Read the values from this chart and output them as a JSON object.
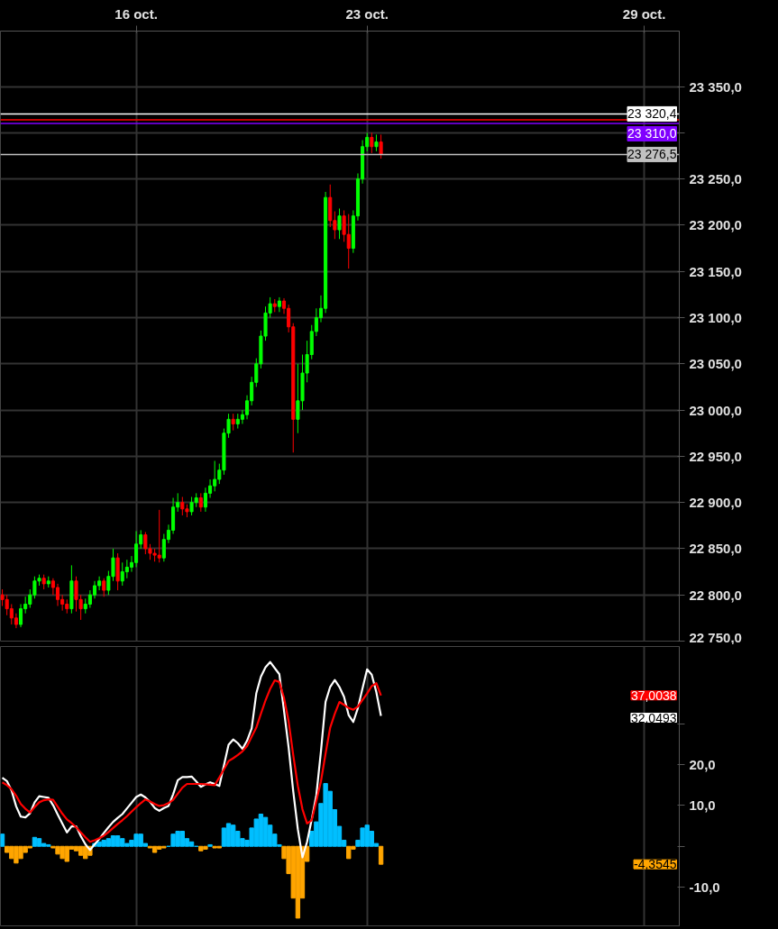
{
  "chart_data": [
    {
      "type": "candlestick",
      "categories": [
        null,
        null,
        null,
        null,
        null,
        null,
        null,
        null,
        null,
        null,
        null,
        null,
        null,
        null,
        null,
        null,
        null,
        null,
        null,
        null,
        null,
        null,
        null,
        null,
        null,
        null,
        null,
        null,
        null,
        "16 oct.",
        null,
        null,
        null,
        null,
        null,
        null,
        null,
        null,
        null,
        null,
        null,
        null,
        null,
        null,
        null,
        null,
        null,
        null,
        null,
        null,
        null,
        null,
        null,
        null,
        null,
        null,
        null,
        null,
        null,
        null,
        null,
        null,
        null,
        null,
        null,
        null,
        null,
        null,
        null,
        null,
        null,
        null,
        null,
        null,
        null,
        null,
        null,
        null,
        null,
        "23 oct.",
        null,
        null,
        null,
        null,
        null,
        null,
        null,
        null,
        null,
        null,
        null,
        null,
        null,
        null,
        null,
        null,
        null,
        null,
        null,
        null,
        null,
        null,
        null,
        null,
        null,
        null,
        null,
        null,
        null,
        null,
        null,
        null,
        null,
        null,
        null,
        null,
        null,
        null,
        null,
        null,
        null,
        null,
        null,
        null,
        null,
        null,
        null,
        null,
        null,
        null,
        null,
        null,
        null,
        null,
        null,
        null,
        null,
        null,
        null,
        "29 oct.",
        null,
        null,
        null,
        null,
        null,
        null,
        null
      ],
      "ohlc": [
        [
          22800,
          22806,
          22788,
          22795
        ],
        [
          22795,
          22800,
          22778,
          22785
        ],
        [
          22785,
          22790,
          22768,
          22775
        ],
        [
          22775,
          22780,
          22764,
          22768
        ],
        [
          22768,
          22790,
          22765,
          22785
        ],
        [
          22785,
          22798,
          22780,
          22790
        ],
        [
          22790,
          22806,
          22786,
          22800
        ],
        [
          22800,
          22820,
          22796,
          22815
        ],
        [
          22815,
          22822,
          22810,
          22818
        ],
        [
          22818,
          22822,
          22806,
          22812
        ],
        [
          22812,
          22820,
          22808,
          22815
        ],
        [
          22815,
          22818,
          22800,
          22808
        ],
        [
          22808,
          22812,
          22788,
          22795
        ],
        [
          22795,
          22800,
          22783,
          22790
        ],
        [
          22790,
          22795,
          22780,
          22785
        ],
        [
          22785,
          22832,
          22780,
          22815
        ],
        [
          22815,
          22820,
          22782,
          22795
        ],
        [
          22795,
          22800,
          22773,
          22785
        ],
        [
          22785,
          22796,
          22780,
          22790
        ],
        [
          22790,
          22805,
          22786,
          22800
        ],
        [
          22800,
          22815,
          22796,
          22810
        ],
        [
          22810,
          22820,
          22805,
          22815
        ],
        [
          22815,
          22818,
          22798,
          22805
        ],
        [
          22805,
          22826,
          22800,
          22820
        ],
        [
          22820,
          22850,
          22815,
          22840
        ],
        [
          22840,
          22845,
          22805,
          22815
        ],
        [
          22815,
          22835,
          22810,
          22825
        ],
        [
          22825,
          22838,
          22818,
          22830
        ],
        [
          22830,
          22842,
          22825,
          22835
        ],
        [
          22835,
          22869,
          22830,
          22855
        ],
        [
          22855,
          22870,
          22850,
          22865
        ],
        [
          22865,
          22868,
          22844,
          22850
        ],
        [
          22850,
          22855,
          22838,
          22845
        ],
        [
          22845,
          22850,
          22836,
          22843
        ],
        [
          22843,
          22892,
          22835,
          22840
        ],
        [
          22840,
          22866,
          22836,
          22860
        ],
        [
          22860,
          22876,
          22856,
          22870
        ],
        [
          22870,
          22905,
          22866,
          22895
        ],
        [
          22895,
          22910,
          22890,
          22900
        ],
        [
          22900,
          22906,
          22886,
          22893
        ],
        [
          22893,
          22898,
          22884,
          22890
        ],
        [
          22890,
          22906,
          22886,
          22900
        ],
        [
          22900,
          22910,
          22895,
          22905
        ],
        [
          22905,
          22910,
          22890,
          22895
        ],
        [
          22895,
          22916,
          22890,
          22910
        ],
        [
          22910,
          22925,
          22905,
          22918
        ],
        [
          22918,
          22945,
          22912,
          22925
        ],
        [
          22925,
          22942,
          22920,
          22935
        ],
        [
          22935,
          22980,
          22930,
          22975
        ],
        [
          22975,
          22996,
          22970,
          22990
        ],
        [
          22990,
          22996,
          22978,
          22985
        ],
        [
          22985,
          22996,
          22980,
          22990
        ],
        [
          22990,
          23000,
          22985,
          22995
        ],
        [
          22995,
          23016,
          22990,
          23010
        ],
        [
          23010,
          23036,
          23005,
          23030
        ],
        [
          23030,
          23056,
          23025,
          23050
        ],
        [
          23050,
          23086,
          23045,
          23080
        ],
        [
          23080,
          23112,
          23075,
          23105
        ],
        [
          23105,
          23122,
          23100,
          23115
        ],
        [
          23115,
          23120,
          23106,
          23112
        ],
        [
          23112,
          23122,
          23106,
          23118
        ],
        [
          23118,
          23121,
          23104,
          23110
        ],
        [
          23110,
          23114,
          23084,
          23090
        ],
        [
          23090,
          23094,
          22954,
          22990
        ],
        [
          22990,
          23050,
          22975,
          23010
        ],
        [
          23010,
          23060,
          23000,
          23040
        ],
        [
          23040,
          23075,
          23030,
          23060
        ],
        [
          23060,
          23092,
          23055,
          23085
        ],
        [
          23085,
          23110,
          23080,
          23100
        ],
        [
          23100,
          23124,
          23095,
          23110
        ],
        [
          23110,
          23236,
          23105,
          23230
        ],
        [
          23230,
          23244,
          23198,
          23205
        ],
        [
          23205,
          23215,
          23185,
          23195
        ],
        [
          23195,
          23218,
          23185,
          23210
        ],
        [
          23210,
          23216,
          23182,
          23190
        ],
        [
          23190,
          23212,
          23153,
          23175
        ],
        [
          23175,
          23216,
          23170,
          23210
        ],
        [
          23210,
          23256,
          23205,
          23250
        ],
        [
          23250,
          23292,
          23245,
          23285
        ],
        [
          23285,
          23300,
          23280,
          23295
        ],
        [
          23295,
          23300,
          23278,
          23285
        ],
        [
          23285,
          23298,
          23280,
          23290
        ],
        [
          23290,
          23298,
          23272,
          23276.5
        ],
        null,
        null,
        null,
        null,
        null,
        null,
        null,
        null,
        null,
        null,
        null,
        null,
        null,
        null,
        null,
        null,
        null,
        null,
        null,
        null,
        null,
        null,
        null,
        null,
        null,
        null,
        null,
        null,
        null,
        null,
        null,
        null,
        null,
        null,
        null,
        null,
        null,
        null,
        null,
        null,
        null,
        null,
        null,
        null,
        null,
        null,
        null,
        null,
        null,
        null,
        null,
        null,
        null,
        null,
        null,
        null,
        null,
        null,
        null,
        null,
        null,
        null,
        null,
        null
      ],
      "colors": [
        "#ff0000",
        "#ff0000",
        "#ff0000",
        "#ff0000",
        "#00ff00",
        "#00ff00",
        "#00ff00",
        "#00ff00",
        "#00ff00",
        "#ff0000",
        "#00ff00",
        "#ff0000",
        "#ff0000",
        "#ff0000",
        "#ff0000",
        "#00ff00",
        "#ff0000",
        "#ff0000",
        "#00ff00",
        "#00ff00",
        "#00ff00",
        "#00ff00",
        "#ff0000",
        "#00ff00",
        "#00ff00",
        "#ff0000",
        "#00ff00",
        "#00ff00",
        "#00ff00",
        "#00ff00",
        "#00ff00",
        "#ff0000",
        "#ff0000",
        "#ff0000",
        "#ff0000",
        "#00ff00",
        "#00ff00",
        "#00ff00",
        "#00ff00",
        "#ff0000",
        "#ff0000",
        "#00ff00",
        "#00ff00",
        "#ff0000",
        "#00ff00",
        "#00ff00",
        "#00ff00",
        "#00ff00",
        "#00ff00",
        "#00ff00",
        "#ff0000",
        "#00ff00",
        "#00ff00",
        "#00ff00",
        "#00ff00",
        "#00ff00",
        "#00ff00",
        "#00ff00",
        "#00ff00",
        "#ff0000",
        "#00ff00",
        "#ff0000",
        "#ff0000",
        "#ff0000",
        "#00ff00",
        "#00ff00",
        "#00ff00",
        "#00ff00",
        "#00ff00",
        "#00ff00",
        "#00ff00",
        "#ff0000",
        "#ff0000",
        "#00ff00",
        "#ff0000",
        "#ff0000",
        "#00ff00",
        "#00ff00",
        "#00ff00",
        "#00ff00",
        "#ff0000",
        "#00ff00",
        "#ff0000",
        null,
        null,
        null,
        null,
        null,
        null,
        null,
        null,
        null,
        null,
        null,
        null,
        null,
        null,
        null,
        null,
        null,
        null,
        null,
        null,
        null,
        null,
        null,
        null,
        null,
        null,
        null,
        null,
        null,
        null,
        null,
        null,
        null,
        null,
        null,
        null,
        null,
        null,
        null,
        null,
        null,
        null,
        null,
        null,
        null,
        null,
        null,
        null,
        null,
        null,
        null,
        null,
        null,
        null,
        null,
        null,
        null,
        null,
        null,
        null,
        null,
        null,
        null,
        null
      ],
      "ylim": [
        22750,
        23410
      ],
      "yticks": [
        {
          "value": 22750,
          "label": "22 750,0"
        },
        {
          "value": 22800,
          "label": "22 800,0"
        },
        {
          "value": 22850,
          "label": "22 850,0"
        },
        {
          "value": 22900,
          "label": "22 900,0"
        },
        {
          "value": 22950,
          "label": "22 950,0"
        },
        {
          "value": 23000,
          "label": "23 000,0"
        },
        {
          "value": 23050,
          "label": "23 050,0"
        },
        {
          "value": 23100,
          "label": "23 100,0"
        },
        {
          "value": 23150,
          "label": "23 150,0"
        },
        {
          "value": 23200,
          "label": "23 200,0"
        },
        {
          "value": 23250,
          "label": "23 250,0"
        },
        {
          "value": 23300,
          "label": null
        },
        {
          "value": 23350,
          "label": "23 350,0"
        }
      ],
      "grid": true,
      "ref_lines": [
        {
          "axis": "y",
          "value": 23320.4,
          "label": "23 320,4",
          "color": "#ffffff"
        },
        {
          "axis": "y",
          "value": 23314,
          "label": null,
          "color": "#ff0000"
        },
        {
          "axis": "y",
          "value": 23310.0,
          "label": "23 310,0",
          "color": "#8000ff"
        },
        {
          "axis": "y",
          "value": 23276.5,
          "label": "23 276,5",
          "color": "#c0c0c0"
        }
      ]
    },
    {
      "type": "bar",
      "categories": [
        null,
        null,
        null,
        null,
        null,
        null,
        null,
        null,
        null,
        null,
        null,
        null,
        null,
        null,
        null,
        null,
        null,
        null,
        null,
        null,
        null,
        null,
        null,
        null,
        null,
        null,
        null,
        null,
        null,
        null,
        null,
        null,
        null,
        null,
        null,
        null,
        null,
        null,
        null,
        null,
        null,
        null,
        null,
        null,
        null,
        null,
        null,
        null,
        null,
        null,
        null,
        null,
        null,
        null,
        null,
        null,
        null,
        null,
        null,
        null,
        null,
        null,
        null,
        null,
        null,
        null,
        null,
        null,
        null,
        null,
        null,
        null,
        null,
        null,
        null,
        null,
        null,
        null,
        null,
        null,
        null,
        null,
        null,
        null,
        null,
        null,
        null,
        null,
        null,
        null,
        null,
        null,
        null,
        null,
        null,
        null,
        null,
        null,
        null,
        null,
        null,
        null,
        null,
        null,
        null,
        null,
        null,
        null,
        null,
        null,
        null,
        null,
        null,
        null,
        null,
        null,
        null,
        null,
        null,
        null,
        null,
        null,
        null,
        null,
        null,
        null,
        null,
        null,
        null,
        null,
        null,
        null,
        null,
        null,
        null,
        null,
        null,
        null,
        null,
        null,
        null,
        null,
        null,
        null,
        null,
        null,
        null
      ],
      "series": [
        {
          "type": "bar",
          "values": [
            3.0,
            -1.5,
            -3.0,
            -4.1,
            -3.0,
            -1.5,
            -0.4,
            2.2,
            1.9,
            0.7,
            0.4,
            -0.4,
            -1.9,
            -3.0,
            -3.7,
            -0.7,
            -1.1,
            -2.2,
            -3.0,
            -2.2,
            0.7,
            1.1,
            1.5,
            1.9,
            2.6,
            2.6,
            1.9,
            0.7,
            1.5,
            3.0,
            3.0,
            0.7,
            -0.4,
            -1.5,
            -0.7,
            -0.4,
            0,
            3.0,
            3.7,
            3.7,
            1.9,
            1.1,
            0,
            -1.1,
            -0.7,
            0.4,
            -0.4,
            -0.4,
            4.5,
            5.6,
            5.2,
            3.7,
            1.9,
            1.5,
            4.5,
            6.7,
            7.9,
            7.1,
            5.2,
            3.0,
            0.4,
            -3.0,
            -6.7,
            -12.7,
            -17.6,
            -12.7,
            -3.7,
            3.7,
            6.0,
            10.5,
            15.4,
            13.5,
            9.0,
            4.9,
            1.5,
            -3.0,
            -0.7,
            1.5,
            4.5,
            5.2,
            3.7,
            0.7,
            -4.4,
            null,
            null,
            null,
            null,
            null,
            null,
            null,
            null,
            null,
            null,
            null,
            null,
            null,
            null,
            null,
            null,
            null,
            null,
            null,
            null,
            null,
            null,
            null,
            null,
            null,
            null,
            null,
            null,
            null,
            null,
            null,
            null,
            null,
            null,
            null,
            null,
            null,
            null,
            null,
            null,
            null,
            null,
            null,
            null,
            null,
            null,
            null,
            null,
            null,
            null,
            null,
            null,
            null,
            null,
            null,
            null,
            null,
            null,
            null,
            null,
            null,
            null,
            null,
            null
          ],
          "colors": [
            "#00bfff",
            "#ffa500",
            "#ffa500",
            "#ffa500",
            "#ffa500",
            "#ffa500",
            "#ffa500",
            "#00bfff",
            "#00bfff",
            "#00bfff",
            "#00bfff",
            "#ffa500",
            "#ffa500",
            "#ffa500",
            "#ffa500",
            "#ffa500",
            "#ffa500",
            "#ffa500",
            "#ffa500",
            "#ffa500",
            "#00bfff",
            "#00bfff",
            "#00bfff",
            "#00bfff",
            "#00bfff",
            "#00bfff",
            "#00bfff",
            "#00bfff",
            "#00bfff",
            "#00bfff",
            "#00bfff",
            "#00bfff",
            "#ffa500",
            "#ffa500",
            "#ffa500",
            "#ffa500",
            "#00bfff",
            "#00bfff",
            "#00bfff",
            "#00bfff",
            "#00bfff",
            "#00bfff",
            "#00bfff",
            "#ffa500",
            "#ffa500",
            "#00bfff",
            "#ffa500",
            "#ffa500",
            "#00bfff",
            "#00bfff",
            "#00bfff",
            "#00bfff",
            "#00bfff",
            "#00bfff",
            "#00bfff",
            "#00bfff",
            "#00bfff",
            "#00bfff",
            "#00bfff",
            "#00bfff",
            "#00bfff",
            "#ffa500",
            "#ffa500",
            "#ffa500",
            "#ffa500",
            "#ffa500",
            "#ffa500",
            "#00bfff",
            "#00bfff",
            "#00bfff",
            "#00bfff",
            "#00bfff",
            "#00bfff",
            "#00bfff",
            "#00bfff",
            "#ffa500",
            "#ffa500",
            "#00bfff",
            "#00bfff",
            "#00bfff",
            "#00bfff",
            "#00bfff",
            "#ffa500",
            null,
            null,
            null,
            null,
            null,
            null,
            null,
            null,
            null,
            null,
            null,
            null,
            null,
            null,
            null,
            null,
            null,
            null,
            null,
            null,
            null,
            null,
            null,
            null,
            null,
            null,
            null,
            null,
            null,
            null,
            null,
            null,
            null,
            null,
            null,
            null,
            null,
            null,
            null,
            null,
            null,
            null,
            null,
            null,
            null,
            null,
            null,
            null,
            null,
            null,
            null,
            null,
            null,
            null,
            null,
            null,
            null,
            null,
            null,
            null,
            null,
            null,
            null,
            null
          ]
        },
        {
          "type": "line",
          "color": "#ffffff",
          "values": [
            16.8,
            16.0,
            13.7,
            9.8,
            7.3,
            7.1,
            8.1,
            10.8,
            12.3,
            12.1,
            11.9,
            10.1,
            7.8,
            5.6,
            3.4,
            4.9,
            4.9,
            2.5,
            0.5,
            -0.9,
            0.5,
            1.8,
            3.3,
            4.7,
            6.0,
            7.0,
            7.9,
            9.3,
            10.7,
            12.1,
            12.7,
            12.0,
            10.9,
            9.4,
            8.7,
            9.4,
            9.9,
            12.8,
            16.2,
            17.0,
            17.0,
            17.1,
            15.9,
            14.6,
            15.2,
            15.7,
            15.3,
            14.8,
            19.9,
            24.9,
            26.2,
            25.3,
            23.9,
            25.9,
            28.9,
            37.5,
            41.6,
            43.9,
            45.2,
            43.7,
            42.2,
            33.3,
            24.3,
            13.5,
            4.2,
            -2.7,
            1.1,
            6.6,
            12.5,
            23.3,
            35.4,
            39.1,
            40.8,
            39.1,
            36.7,
            32.2,
            30.5,
            33.9,
            38.7,
            43.4,
            42.1,
            37.8,
            32.0,
            null,
            null,
            null,
            null,
            null,
            null,
            null,
            null,
            null,
            null,
            null,
            null,
            null,
            null,
            null,
            null,
            null,
            null,
            null,
            null,
            null,
            null,
            null,
            null,
            null,
            null,
            null,
            null,
            null,
            null,
            null,
            null,
            null,
            null,
            null,
            null,
            null,
            null,
            null,
            null,
            null,
            null,
            null,
            null,
            null,
            null,
            null,
            null,
            null,
            null,
            null,
            null,
            null,
            null,
            null,
            null,
            null,
            null,
            null,
            null,
            null,
            null,
            null,
            null
          ]
        },
        {
          "type": "line",
          "color": "#ff0000",
          "values": [
            15.7,
            15.0,
            14.0,
            12.4,
            10.4,
            9.2,
            8.3,
            9.6,
            10.8,
            11.3,
            11.5,
            11.4,
            9.7,
            8.0,
            6.6,
            5.7,
            4.7,
            3.4,
            2.2,
            1.1,
            1.5,
            2.0,
            2.6,
            3.5,
            4.5,
            5.5,
            6.4,
            7.4,
            8.5,
            9.6,
            10.6,
            11.5,
            11.0,
            10.4,
            9.9,
            10.1,
            10.6,
            11.4,
            12.9,
            14.4,
            15.3,
            15.3,
            15.3,
            15.3,
            15.2,
            15.1,
            15.0,
            16.9,
            18.9,
            20.9,
            21.6,
            22.4,
            23.3,
            24.6,
            26.9,
            29.1,
            32.5,
            35.8,
            38.6,
            40.7,
            40.3,
            36.4,
            30.7,
            22.4,
            14.8,
            9.1,
            5.6,
            6.4,
            11.1,
            15.9,
            22.7,
            29.1,
            32.5,
            35.4,
            34.7,
            33.9,
            33.5,
            34.3,
            35.9,
            37.5,
            39.3,
            40.0,
            37.0,
            null,
            null,
            null,
            null,
            null,
            null,
            null,
            null,
            null,
            null,
            null,
            null,
            null,
            null,
            null,
            null,
            null,
            null,
            null,
            null,
            null,
            null,
            null,
            null,
            null,
            null,
            null,
            null,
            null,
            null,
            null,
            null,
            null,
            null,
            null,
            null,
            null,
            null,
            null,
            null,
            null,
            null,
            null,
            null,
            null,
            null,
            null,
            null,
            null,
            null,
            null,
            null,
            null,
            null,
            null,
            null,
            null,
            null,
            null,
            null,
            null,
            null,
            null,
            null
          ]
        }
      ],
      "ylim": [
        -19.5,
        49
      ],
      "yticks": [
        {
          "value": -10,
          "label": "-10,0"
        },
        {
          "value": 0,
          "label": null
        },
        {
          "value": 10,
          "label": "10,0"
        },
        {
          "value": 20,
          "label": "20,0"
        },
        {
          "value": 30,
          "label": null
        }
      ],
      "tick_labels": "y",
      "grid": "x",
      "annotations": [
        "37,0038",
        "32,0493",
        "-4,3545"
      ]
    }
  ]
}
